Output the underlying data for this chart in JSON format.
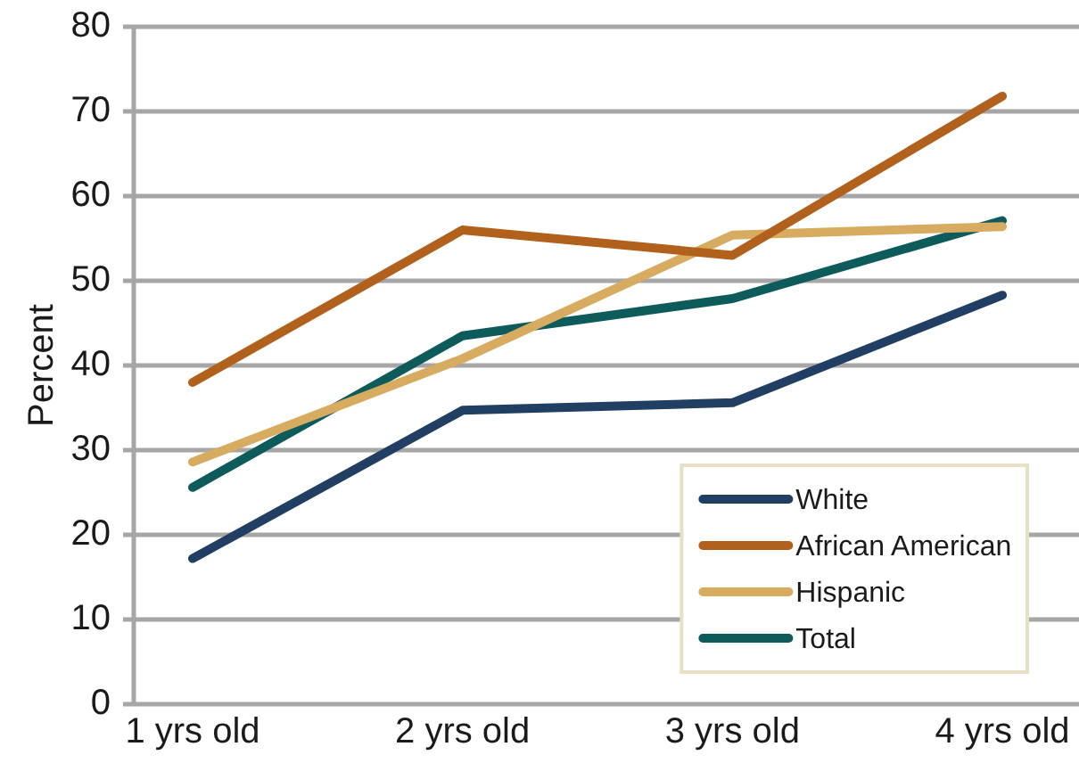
{
  "chart_data": {
    "type": "line",
    "ylabel": "Percent",
    "categories": [
      "1 yrs old",
      "2 yrs old",
      "3 yrs old",
      "4 yrs old"
    ],
    "series": [
      {
        "name": "White",
        "color": "#203f62",
        "values": [
          17.2,
          34.7,
          35.6,
          48.3
        ]
      },
      {
        "name": "African American",
        "color": "#b1611c",
        "values": [
          38,
          56,
          53,
          71.8
        ]
      },
      {
        "name": "Hispanic",
        "color": "#d7ac60",
        "values": [
          28.6,
          40.8,
          55.4,
          56.4
        ]
      },
      {
        "name": "Total",
        "color": "#0d5b5b",
        "values": [
          25.6,
          43.5,
          47.9,
          57.1
        ]
      }
    ],
    "ylim": [
      0,
      80
    ],
    "yticks": [
      0,
      10,
      20,
      30,
      40,
      50,
      60,
      70,
      80
    ],
    "grid": "y",
    "legend": "bottom right",
    "marker": "none",
    "line_style": "solid"
  }
}
